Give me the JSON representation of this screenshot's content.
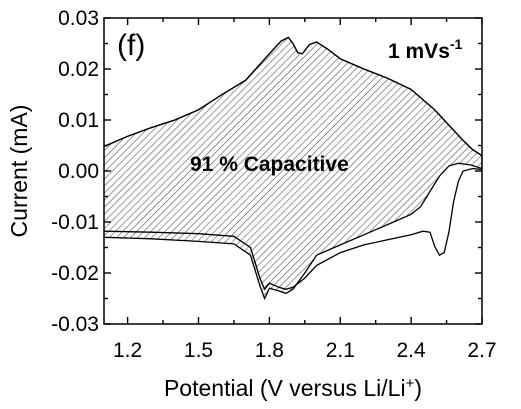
{
  "chart_data": {
    "type": "line",
    "panel_label": "(f)",
    "scan_rate": {
      "text": "1 mVs",
      "superscript": "-1"
    },
    "region_label": "91 % Capacitive",
    "xlabel": {
      "main": "Potential (V versus Li/Li",
      "superscript": "+",
      "close": ")"
    },
    "ylabel": "Current (mA)",
    "xlim": [
      1.1,
      2.7
    ],
    "ylim": [
      -0.03,
      0.03
    ],
    "xticks": [
      1.2,
      1.5,
      1.8,
      2.1,
      2.4,
      2.7
    ],
    "xtick_labels": [
      "1.2",
      "1.5",
      "1.8",
      "2.1",
      "2.4",
      "2.7"
    ],
    "yticks": [
      -0.03,
      -0.02,
      -0.01,
      0.0,
      0.01,
      0.02,
      0.03
    ],
    "ytick_labels": [
      "-0.03",
      "-0.02",
      "-0.01",
      "0.00",
      "0.01",
      "0.02",
      "0.03"
    ],
    "grid": false,
    "colors": {
      "line": "#000000",
      "hatch": "#555555"
    },
    "series": [
      {
        "role": "total-cv",
        "points": [
          [
            1.1,
            -0.0118
          ],
          [
            1.3,
            -0.012
          ],
          [
            1.5,
            -0.0123
          ],
          [
            1.65,
            -0.0128
          ],
          [
            1.72,
            -0.015
          ],
          [
            1.76,
            -0.021
          ],
          [
            1.78,
            -0.0232
          ],
          [
            1.8,
            -0.022
          ],
          [
            1.84,
            -0.0228
          ],
          [
            1.87,
            -0.0232
          ],
          [
            1.9,
            -0.0228
          ],
          [
            1.95,
            -0.021
          ],
          [
            2.0,
            -0.0185
          ],
          [
            2.1,
            -0.016
          ],
          [
            2.2,
            -0.0145
          ],
          [
            2.3,
            -0.0135
          ],
          [
            2.4,
            -0.0125
          ],
          [
            2.45,
            -0.0118
          ],
          [
            2.48,
            -0.012
          ],
          [
            2.5,
            -0.0148
          ],
          [
            2.52,
            -0.0165
          ],
          [
            2.54,
            -0.016
          ],
          [
            2.56,
            -0.012
          ],
          [
            2.58,
            -0.006
          ],
          [
            2.6,
            -0.002
          ],
          [
            2.62,
            0.0
          ],
          [
            2.66,
            0.0005
          ],
          [
            2.7,
            0.0003
          ],
          [
            2.7,
            0.003
          ],
          [
            2.66,
            0.0042
          ],
          [
            2.62,
            0.006
          ],
          [
            2.58,
            0.008
          ],
          [
            2.5,
            0.012
          ],
          [
            2.4,
            0.016
          ],
          [
            2.3,
            0.0182
          ],
          [
            2.2,
            0.02
          ],
          [
            2.1,
            0.022
          ],
          [
            2.05,
            0.0238
          ],
          [
            2.0,
            0.0253
          ],
          [
            1.97,
            0.0248
          ],
          [
            1.94,
            0.023
          ],
          [
            1.92,
            0.0232
          ],
          [
            1.9,
            0.025
          ],
          [
            1.88,
            0.0262
          ],
          [
            1.85,
            0.0255
          ],
          [
            1.82,
            0.024
          ],
          [
            1.7,
            0.0178
          ],
          [
            1.6,
            0.015
          ],
          [
            1.5,
            0.012
          ],
          [
            1.4,
            0.01
          ],
          [
            1.3,
            0.0085
          ],
          [
            1.2,
            0.0068
          ],
          [
            1.1,
            0.0048
          ]
        ]
      },
      {
        "role": "capacitive-fraction",
        "points": [
          [
            1.1,
            -0.013
          ],
          [
            1.3,
            -0.0133
          ],
          [
            1.5,
            -0.0138
          ],
          [
            1.65,
            -0.0143
          ],
          [
            1.72,
            -0.0165
          ],
          [
            1.76,
            -0.0225
          ],
          [
            1.78,
            -0.025
          ],
          [
            1.8,
            -0.023
          ],
          [
            1.84,
            -0.0235
          ],
          [
            1.87,
            -0.024
          ],
          [
            1.9,
            -0.0232
          ],
          [
            1.95,
            -0.02
          ],
          [
            2.0,
            -0.0165
          ],
          [
            2.1,
            -0.0145
          ],
          [
            2.2,
            -0.0125
          ],
          [
            2.3,
            -0.0105
          ],
          [
            2.4,
            -0.0085
          ],
          [
            2.44,
            -0.007
          ],
          [
            2.48,
            -0.004
          ],
          [
            2.52,
            -0.001
          ],
          [
            2.56,
            0.001
          ],
          [
            2.6,
            0.0015
          ],
          [
            2.65,
            0.0012
          ],
          [
            2.7,
            0.0005
          ],
          [
            2.7,
            0.003
          ],
          [
            2.66,
            0.0042
          ],
          [
            2.62,
            0.006
          ],
          [
            2.58,
            0.008
          ],
          [
            2.5,
            0.012
          ],
          [
            2.4,
            0.016
          ],
          [
            2.3,
            0.0182
          ],
          [
            2.2,
            0.02
          ],
          [
            2.1,
            0.022
          ],
          [
            2.05,
            0.0238
          ],
          [
            2.0,
            0.0253
          ],
          [
            1.97,
            0.0248
          ],
          [
            1.94,
            0.023
          ],
          [
            1.92,
            0.0232
          ],
          [
            1.9,
            0.025
          ],
          [
            1.88,
            0.0262
          ],
          [
            1.85,
            0.0255
          ],
          [
            1.82,
            0.024
          ],
          [
            1.7,
            0.0178
          ],
          [
            1.6,
            0.015
          ],
          [
            1.5,
            0.012
          ],
          [
            1.4,
            0.01
          ],
          [
            1.3,
            0.0085
          ],
          [
            1.2,
            0.0068
          ],
          [
            1.1,
            0.0048
          ]
        ]
      }
    ]
  }
}
